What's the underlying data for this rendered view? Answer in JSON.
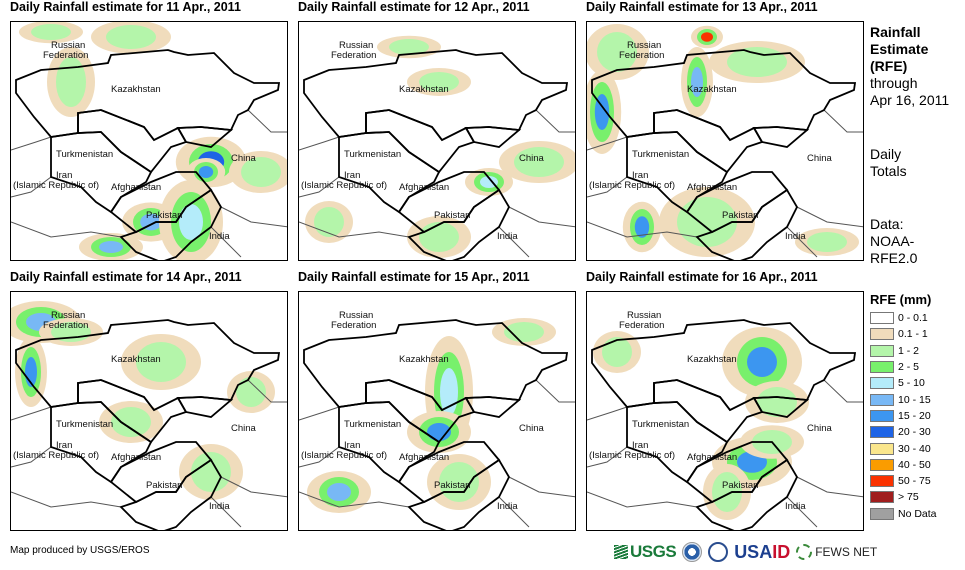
{
  "panels": [
    {
      "title": "Daily Rainfall estimate for 11 Apr., 2011"
    },
    {
      "title": "Daily Rainfall estimate for 12 Apr., 2011"
    },
    {
      "title": "Daily Rainfall estimate for 13 Apr., 2011"
    },
    {
      "title": "Daily Rainfall estimate for 14 Apr., 2011"
    },
    {
      "title": "Daily Rainfall estimate for 15 Apr., 2011"
    },
    {
      "title": "Daily Rainfall estimate for 16 Apr., 2011"
    }
  ],
  "map_labels": {
    "russia1": "Russian",
    "russia2": "Federation",
    "kazakhstan": "Kazakhstan",
    "turkmenistan": "Turkmenistan",
    "iran1": "Iran",
    "iran2": "(Islamic Republic of)",
    "afghanistan": "Afghanistan",
    "pakistan": "Pakistan",
    "china": "China",
    "india": "India"
  },
  "side": {
    "title1": "Rainfall",
    "title2": "Estimate",
    "title3": "(RFE)",
    "through1": "through",
    "through2": "Apr 16, 2011",
    "daily1": "Daily",
    "daily2": "Totals",
    "data1": "Data:",
    "data2": "NOAA-",
    "data3": "RFE2.0"
  },
  "legend": {
    "title": "RFE (mm)",
    "items": [
      {
        "label": "0 - 0.1",
        "color": "#ffffff"
      },
      {
        "label": "0.1 - 1",
        "color": "#f0dcbc"
      },
      {
        "label": "1 - 2",
        "color": "#b4f5aa"
      },
      {
        "label": "2 - 5",
        "color": "#78f06c"
      },
      {
        "label": "5 - 10",
        "color": "#b4ecfa"
      },
      {
        "label": "10 - 15",
        "color": "#78b8f5"
      },
      {
        "label": "15 - 20",
        "color": "#3c96f0"
      },
      {
        "label": "20 - 30",
        "color": "#1e64e6"
      },
      {
        "label": "30 - 40",
        "color": "#fae68c"
      },
      {
        "label": "40 - 50",
        "color": "#fa9c00"
      },
      {
        "label": "50 - 75",
        "color": "#fa3200"
      },
      {
        "label": "> 75",
        "color": "#a01e1e"
      },
      {
        "label": "No Data",
        "color": "#a0a0a0"
      }
    ]
  },
  "footer": {
    "credit": "Map produced by USGS/EROS",
    "usgs": "USGS",
    "usaid_a": "USA",
    "usaid_b": "ID",
    "fews": "FEWS NET"
  }
}
